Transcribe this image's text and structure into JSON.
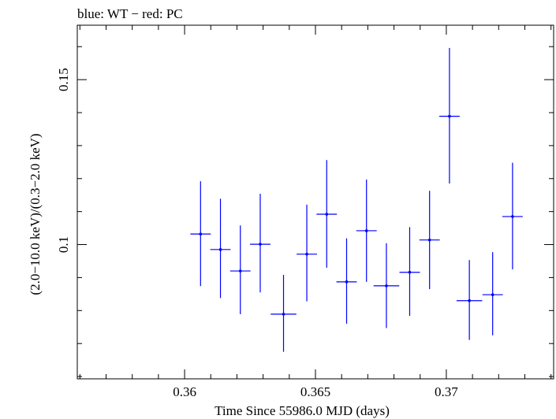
{
  "chart_data": {
    "type": "scatter",
    "title": "blue: WT − red: PC",
    "xlabel": "Time Since 55986.0 MJD (days)",
    "ylabel": "(2.0−10.0 keV)/(0.3−2.0 keV)",
    "xlim": [
      0.3559,
      0.3741
    ],
    "ylim": [
      0.0593,
      0.1665
    ],
    "x_ticks": [
      {
        "value": 0.36,
        "label": "0.36"
      },
      {
        "value": 0.365,
        "label": "0.365"
      },
      {
        "value": 0.37,
        "label": "0.37"
      }
    ],
    "y_ticks": [
      {
        "value": 0.1,
        "label": "0.1"
      },
      {
        "value": 0.15,
        "label": "0.15"
      }
    ],
    "series": [
      {
        "color": "#0000ff",
        "points": [
          {
            "x": 0.36061,
            "xerr": 0.00039,
            "y": 0.1032,
            "ylo": 0.0874,
            "yhi": 0.1192
          },
          {
            "x": 0.36137,
            "xerr": 0.00039,
            "y": 0.0985,
            "ylo": 0.0838,
            "yhi": 0.1139
          },
          {
            "x": 0.36213,
            "xerr": 0.00039,
            "y": 0.092,
            "ylo": 0.0789,
            "yhi": 0.1058
          },
          {
            "x": 0.36289,
            "xerr": 0.00039,
            "y": 0.1001,
            "ylo": 0.0855,
            "yhi": 0.1154
          },
          {
            "x": 0.36378,
            "xerr": 0.00049,
            "y": 0.0789,
            "ylo": 0.0675,
            "yhi": 0.0908
          },
          {
            "x": 0.36467,
            "xerr": 0.00039,
            "y": 0.0971,
            "ylo": 0.0828,
            "yhi": 0.1121
          },
          {
            "x": 0.36543,
            "xerr": 0.00039,
            "y": 0.1092,
            "ylo": 0.093,
            "yhi": 0.1256
          },
          {
            "x": 0.36619,
            "xerr": 0.00039,
            "y": 0.0887,
            "ylo": 0.076,
            "yhi": 0.1019
          },
          {
            "x": 0.36695,
            "xerr": 0.00039,
            "y": 0.1042,
            "ylo": 0.0887,
            "yhi": 0.1197
          },
          {
            "x": 0.36771,
            "xerr": 0.00049,
            "y": 0.0875,
            "ylo": 0.0747,
            "yhi": 0.1004
          },
          {
            "x": 0.3686,
            "xerr": 0.00039,
            "y": 0.0916,
            "ylo": 0.0784,
            "yhi": 0.1053
          },
          {
            "x": 0.36936,
            "xerr": 0.00039,
            "y": 0.1014,
            "ylo": 0.0865,
            "yhi": 0.1163
          },
          {
            "x": 0.37012,
            "xerr": 0.00039,
            "y": 0.1389,
            "ylo": 0.1185,
            "yhi": 0.1596
          },
          {
            "x": 0.37088,
            "xerr": 0.00049,
            "y": 0.083,
            "ylo": 0.0711,
            "yhi": 0.0953
          },
          {
            "x": 0.37177,
            "xerr": 0.00039,
            "y": 0.0848,
            "ylo": 0.0725,
            "yhi": 0.0977
          },
          {
            "x": 0.37253,
            "xerr": 0.00039,
            "y": 0.1085,
            "ylo": 0.0925,
            "yhi": 0.1248
          }
        ]
      }
    ]
  }
}
